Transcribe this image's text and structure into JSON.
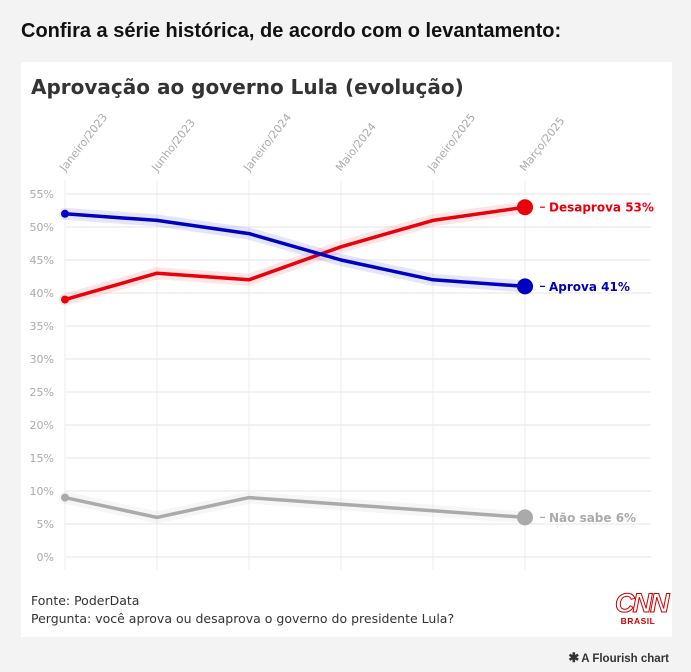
{
  "headline": "Confira a série histórica, de acordo com o levantamento:",
  "chart_data": {
    "type": "line",
    "title": "Aprovação ao governo Lula (evolução)",
    "x_ticks": [
      "Janeiro/2023",
      "Junho/2023",
      "Janeiro/2024",
      "Maio/2024",
      "Janeiro/2025",
      "Março/2025"
    ],
    "y_ticks": [
      "0%",
      "5%",
      "10%",
      "15%",
      "20%",
      "25%",
      "30%",
      "35%",
      "40%",
      "45%",
      "50%",
      "55%"
    ],
    "ylim": [
      0,
      55
    ],
    "grid": true,
    "series": [
      {
        "name": "Desaprova",
        "label": "Desaprova 53%",
        "color": "#e8000b",
        "points": [
          {
            "x": 0,
            "y": 39
          },
          {
            "x": 1,
            "y": 43
          },
          {
            "x": 2,
            "y": 42
          },
          {
            "x": 3,
            "y": 47
          },
          {
            "x": 4,
            "y": 51
          },
          {
            "x": 5,
            "y": 53
          }
        ]
      },
      {
        "name": "Aprova",
        "label": "Aprova 41%",
        "color": "#0000c0",
        "points": [
          {
            "x": 0,
            "y": 52
          },
          {
            "x": 1,
            "y": 51
          },
          {
            "x": 2,
            "y": 49
          },
          {
            "x": 3,
            "y": 45
          },
          {
            "x": 4,
            "y": 42
          },
          {
            "x": 5,
            "y": 41
          }
        ]
      },
      {
        "name": "Não sabe",
        "label": "Não sabe 6%",
        "color": "#aaaaaa",
        "points": [
          {
            "x": 0,
            "y": 9
          },
          {
            "x": 1,
            "y": 6
          },
          {
            "x": 2,
            "y": 9
          },
          {
            "x": 3,
            "y": 8
          },
          {
            "x": 4,
            "y": 7
          },
          {
            "x": 5,
            "y": 6
          }
        ]
      }
    ]
  },
  "footer": {
    "source": "Fonte: PoderData",
    "question": "Pergunta: você aprova ou desaprova o governo do presidente Lula?"
  },
  "logo": {
    "mark": "CNN",
    "sub": "BRASIL"
  },
  "credit": {
    "icon": "asterisk-icon",
    "text": "A Flourish chart"
  }
}
